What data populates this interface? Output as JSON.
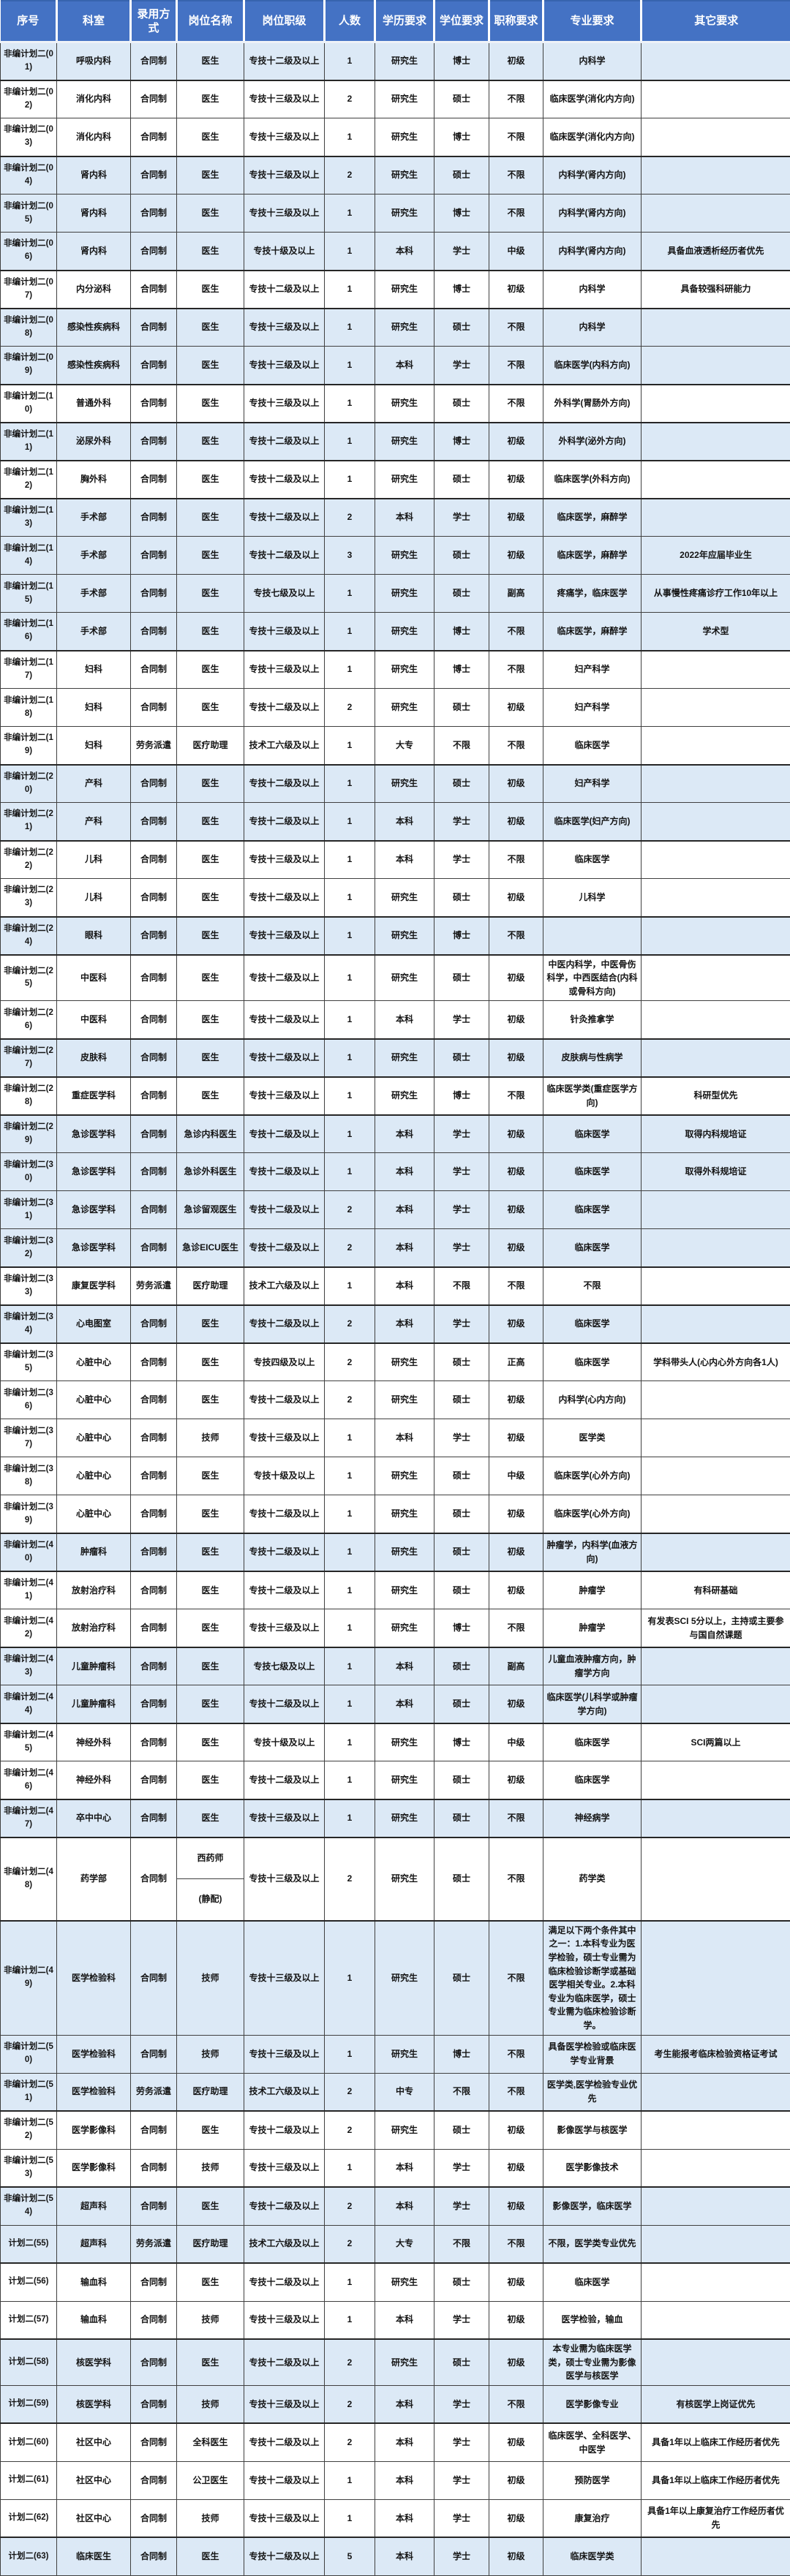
{
  "colors": {
    "header_bg": "#4472C4",
    "header_text": "#FFFFFF",
    "row_shade_blue": "#DCE9F6",
    "row_white": "#FFFFFF",
    "grid_border": "#404040"
  },
  "table": {
    "columns": [
      {
        "key": "serial",
        "label": "序号"
      },
      {
        "key": "dept",
        "label": "科室"
      },
      {
        "key": "hire",
        "label": "录用方式"
      },
      {
        "key": "post",
        "label": "岗位名称"
      },
      {
        "key": "rank",
        "label": "岗位职级"
      },
      {
        "key": "count",
        "label": "人数"
      },
      {
        "key": "edu",
        "label": "学历要求"
      },
      {
        "key": "degree",
        "label": "学位要求"
      },
      {
        "key": "title",
        "label": "职称要求"
      },
      {
        "key": "major",
        "label": "专业要求"
      },
      {
        "key": "other",
        "label": "其它要求"
      }
    ],
    "rows": [
      {
        "serial": "非编计划二(01)",
        "dept": "呼吸内科",
        "hire": "合同制",
        "post": "医生",
        "rank": "专技十二级及以上",
        "count": "1",
        "edu": "研究生",
        "degree": "博士",
        "title": "初级",
        "major": "内科学",
        "other": ""
      },
      {
        "serial": "非编计划二(02)",
        "dept": "消化内科",
        "hire": "合同制",
        "post": "医生",
        "rank": "专技十三级及以上",
        "count": "2",
        "edu": "研究生",
        "degree": "硕士",
        "title": "不限",
        "major": "临床医学(消化内方向)",
        "other": ""
      },
      {
        "serial": "非编计划二(03)",
        "dept": "消化内科",
        "hire": "合同制",
        "post": "医生",
        "rank": "专技十三级及以上",
        "count": "1",
        "edu": "研究生",
        "degree": "博士",
        "title": "不限",
        "major": "临床医学(消化内方向)",
        "other": ""
      },
      {
        "serial": "非编计划二(04)",
        "dept": "肾内科",
        "hire": "合同制",
        "post": "医生",
        "rank": "专技十三级及以上",
        "count": "2",
        "edu": "研究生",
        "degree": "硕士",
        "title": "不限",
        "major": "内科学(肾内方向)",
        "other": ""
      },
      {
        "serial": "非编计划二(05)",
        "dept": "肾内科",
        "hire": "合同制",
        "post": "医生",
        "rank": "专技十三级及以上",
        "count": "1",
        "edu": "研究生",
        "degree": "博士",
        "title": "不限",
        "major": "内科学(肾内方向)",
        "other": ""
      },
      {
        "serial": "非编计划二(06)",
        "dept": "肾内科",
        "hire": "合同制",
        "post": "医生",
        "rank": "专技十级及以上",
        "count": "1",
        "edu": "本科",
        "degree": "学士",
        "title": "中级",
        "major": "内科学(肾内方向)",
        "other": "具备血液透析经历者优先"
      },
      {
        "serial": "非编计划二(07)",
        "dept": "内分泌科",
        "hire": "合同制",
        "post": "医生",
        "rank": "专技十二级及以上",
        "count": "1",
        "edu": "研究生",
        "degree": "博士",
        "title": "初级",
        "major": "内科学",
        "other": "具备较强科研能力"
      },
      {
        "serial": "非编计划二(08)",
        "dept": "感染性疾病科",
        "hire": "合同制",
        "post": "医生",
        "rank": "专技十三级及以上",
        "count": "1",
        "edu": "研究生",
        "degree": "硕士",
        "title": "不限",
        "major": "内科学",
        "other": ""
      },
      {
        "serial": "非编计划二(09)",
        "dept": "感染性疾病科",
        "hire": "合同制",
        "post": "医生",
        "rank": "专技十三级及以上",
        "count": "1",
        "edu": "本科",
        "degree": "学士",
        "title": "不限",
        "major": "临床医学(内科方向)",
        "other": ""
      },
      {
        "serial": "非编计划二(10)",
        "dept": "普通外科",
        "hire": "合同制",
        "post": "医生",
        "rank": "专技十三级及以上",
        "count": "1",
        "edu": "研究生",
        "degree": "硕士",
        "title": "不限",
        "major": "外科学(胃肠外方向)",
        "other": ""
      },
      {
        "serial": "非编计划二(11)",
        "dept": "泌尿外科",
        "hire": "合同制",
        "post": "医生",
        "rank": "专技十二级及以上",
        "count": "1",
        "edu": "研究生",
        "degree": "博士",
        "title": "初级",
        "major": "外科学(泌外方向)",
        "other": ""
      },
      {
        "serial": "非编计划二(12)",
        "dept": "胸外科",
        "hire": "合同制",
        "post": "医生",
        "rank": "专技十二级及以上",
        "count": "1",
        "edu": "研究生",
        "degree": "硕士",
        "title": "初级",
        "major": "临床医学(外科方向)",
        "other": ""
      },
      {
        "serial": "非编计划二(13)",
        "dept": "手术部",
        "hire": "合同制",
        "post": "医生",
        "rank": "专技十二级及以上",
        "count": "2",
        "edu": "本科",
        "degree": "学士",
        "title": "初级",
        "major": "临床医学，麻醉学",
        "other": ""
      },
      {
        "serial": "非编计划二(14)",
        "dept": "手术部",
        "hire": "合同制",
        "post": "医生",
        "rank": "专技十二级及以上",
        "count": "3",
        "edu": "研究生",
        "degree": "硕士",
        "title": "初级",
        "major": "临床医学，麻醉学",
        "other": "2022年应届毕业生"
      },
      {
        "serial": "非编计划二(15)",
        "dept": "手术部",
        "hire": "合同制",
        "post": "医生",
        "rank": "专技七级及以上",
        "count": "1",
        "edu": "研究生",
        "degree": "硕士",
        "title": "副高",
        "major": "疼痛学，临床医学",
        "other": "从事慢性疼痛诊疗工作10年以上"
      },
      {
        "serial": "非编计划二(16)",
        "dept": "手术部",
        "hire": "合同制",
        "post": "医生",
        "rank": "专技十三级及以上",
        "count": "1",
        "edu": "研究生",
        "degree": "博士",
        "title": "不限",
        "major": "临床医学，麻醉学",
        "other": "学术型"
      },
      {
        "serial": "非编计划二(17)",
        "dept": "妇科",
        "hire": "合同制",
        "post": "医生",
        "rank": "专技十三级及以上",
        "count": "1",
        "edu": "研究生",
        "degree": "博士",
        "title": "不限",
        "major": "妇产科学",
        "other": ""
      },
      {
        "serial": "非编计划二(18)",
        "dept": "妇科",
        "hire": "合同制",
        "post": "医生",
        "rank": "专技十二级及以上",
        "count": "2",
        "edu": "研究生",
        "degree": "硕士",
        "title": "初级",
        "major": "妇产科学",
        "other": ""
      },
      {
        "serial": "非编计划二(19)",
        "dept": "妇科",
        "hire": "劳务派遣",
        "post": "医疗助理",
        "rank": "技术工六级及以上",
        "count": "1",
        "edu": "大专",
        "degree": "不限",
        "title": "不限",
        "major": "临床医学",
        "other": ""
      },
      {
        "serial": "非编计划二(20)",
        "dept": "产科",
        "hire": "合同制",
        "post": "医生",
        "rank": "专技十二级及以上",
        "count": "1",
        "edu": "研究生",
        "degree": "硕士",
        "title": "初级",
        "major": "妇产科学",
        "other": ""
      },
      {
        "serial": "非编计划二(21)",
        "dept": "产科",
        "hire": "合同制",
        "post": "医生",
        "rank": "专技十二级及以上",
        "count": "1",
        "edu": "本科",
        "degree": "学士",
        "title": "初级",
        "major": "临床医学(妇产方向)",
        "other": ""
      },
      {
        "serial": "非编计划二(22)",
        "dept": "儿科",
        "hire": "合同制",
        "post": "医生",
        "rank": "专技十三级及以上",
        "count": "1",
        "edu": "本科",
        "degree": "学士",
        "title": "不限",
        "major": "临床医学",
        "other": ""
      },
      {
        "serial": "非编计划二(23)",
        "dept": "儿科",
        "hire": "合同制",
        "post": "医生",
        "rank": "专技十二级及以上",
        "count": "1",
        "edu": "研究生",
        "degree": "硕士",
        "title": "初级",
        "major": "儿科学",
        "other": ""
      },
      {
        "serial": "非编计划二(24)",
        "dept": "眼科",
        "hire": "合同制",
        "post": "医生",
        "rank": "专技十三级及以上",
        "count": "1",
        "edu": "研究生",
        "degree": "博士",
        "title": "不限",
        "major": "",
        "other": ""
      },
      {
        "serial": "非编计划二(25)",
        "dept": "中医科",
        "hire": "合同制",
        "post": "医生",
        "rank": "专技十二级及以上",
        "count": "1",
        "edu": "研究生",
        "degree": "硕士",
        "title": "初级",
        "major": "中医内科学，中医骨伤科学，中西医结合(内科或骨科方向)",
        "other": ""
      },
      {
        "serial": "非编计划二(26)",
        "dept": "中医科",
        "hire": "合同制",
        "post": "医生",
        "rank": "专技十二级及以上",
        "count": "1",
        "edu": "本科",
        "degree": "学士",
        "title": "初级",
        "major": "针灸推拿学",
        "other": ""
      },
      {
        "serial": "非编计划二(27)",
        "dept": "皮肤科",
        "hire": "合同制",
        "post": "医生",
        "rank": "专技十二级及以上",
        "count": "1",
        "edu": "研究生",
        "degree": "硕士",
        "title": "初级",
        "major": "皮肤病与性病学",
        "other": ""
      },
      {
        "serial": "非编计划二(28)",
        "dept": "重症医学科",
        "hire": "合同制",
        "post": "医生",
        "rank": "专技十三级及以上",
        "count": "1",
        "edu": "研究生",
        "degree": "博士",
        "title": "不限",
        "major": "临床医学类(重症医学方向)",
        "other": "科研型优先"
      },
      {
        "serial": "非编计划二(29)",
        "dept": "急诊医学科",
        "hire": "合同制",
        "post": "急诊内科医生",
        "rank": "专技十二级及以上",
        "count": "1",
        "edu": "本科",
        "degree": "学士",
        "title": "初级",
        "major": "临床医学",
        "other": "取得内科规培证"
      },
      {
        "serial": "非编计划二(30)",
        "dept": "急诊医学科",
        "hire": "合同制",
        "post": "急诊外科医生",
        "rank": "专技十二级及以上",
        "count": "1",
        "edu": "本科",
        "degree": "学士",
        "title": "初级",
        "major": "临床医学",
        "other": "取得外科规培证"
      },
      {
        "serial": "非编计划二(31)",
        "dept": "急诊医学科",
        "hire": "合同制",
        "post": "急诊留观医生",
        "rank": "专技十二级及以上",
        "count": "2",
        "edu": "本科",
        "degree": "学士",
        "title": "初级",
        "major": "临床医学",
        "other": ""
      },
      {
        "serial": "非编计划二(32)",
        "dept": "急诊医学科",
        "hire": "合同制",
        "post": "急诊EICU医生",
        "rank": "专技十二级及以上",
        "count": "2",
        "edu": "本科",
        "degree": "学士",
        "title": "初级",
        "major": "临床医学",
        "other": ""
      },
      {
        "serial": "非编计划二(33)",
        "dept": "康复医学科",
        "hire": "劳务派遣",
        "post": "医疗助理",
        "rank": "技术工六级及以上",
        "count": "1",
        "edu": "本科",
        "degree": "不限",
        "title": "不限",
        "major": "不限",
        "other": ""
      },
      {
        "serial": "非编计划二(34)",
        "dept": "心电图室",
        "hire": "合同制",
        "post": "医生",
        "rank": "专技十二级及以上",
        "count": "2",
        "edu": "本科",
        "degree": "学士",
        "title": "初级",
        "major": "临床医学",
        "other": ""
      },
      {
        "serial": "非编计划二(35)",
        "dept": "心脏中心",
        "hire": "合同制",
        "post": "医生",
        "rank": "专技四级及以上",
        "count": "2",
        "edu": "研究生",
        "degree": "硕士",
        "title": "正高",
        "major": "临床医学",
        "other": "学科带头人(心内心外方向各1人)"
      },
      {
        "serial": "非编计划二(36)",
        "dept": "心脏中心",
        "hire": "合同制",
        "post": "医生",
        "rank": "专技十二级及以上",
        "count": "2",
        "edu": "研究生",
        "degree": "硕士",
        "title": "初级",
        "major": "内科学(心内方向)",
        "other": ""
      },
      {
        "serial": "非编计划二(37)",
        "dept": "心脏中心",
        "hire": "合同制",
        "post": "技师",
        "rank": "专技十三级及以上",
        "count": "1",
        "edu": "本科",
        "degree": "学士",
        "title": "初级",
        "major": "医学类",
        "other": ""
      },
      {
        "serial": "非编计划二(38)",
        "dept": "心脏中心",
        "hire": "合同制",
        "post": "医生",
        "rank": "专技十级及以上",
        "count": "1",
        "edu": "研究生",
        "degree": "硕士",
        "title": "中级",
        "major": "临床医学(心外方向)",
        "other": ""
      },
      {
        "serial": "非编计划二(39)",
        "dept": "心脏中心",
        "hire": "合同制",
        "post": "医生",
        "rank": "专技十二级及以上",
        "count": "1",
        "edu": "研究生",
        "degree": "硕士",
        "title": "初级",
        "major": "临床医学(心外方向)",
        "other": ""
      },
      {
        "serial": "非编计划二(40)",
        "dept": "肿瘤科",
        "hire": "合同制",
        "post": "医生",
        "rank": "专技十二级及以上",
        "count": "1",
        "edu": "研究生",
        "degree": "硕士",
        "title": "初级",
        "major": "肿瘤学，内科学(血液方向)",
        "other": ""
      },
      {
        "serial": "非编计划二(41)",
        "dept": "放射治疗科",
        "hire": "合同制",
        "post": "医生",
        "rank": "专技十二级及以上",
        "count": "1",
        "edu": "研究生",
        "degree": "硕士",
        "title": "初级",
        "major": "肿瘤学",
        "other": "有科研基础"
      },
      {
        "serial": "非编计划二(42)",
        "dept": "放射治疗科",
        "hire": "合同制",
        "post": "医生",
        "rank": "专技十三级及以上",
        "count": "1",
        "edu": "研究生",
        "degree": "博士",
        "title": "不限",
        "major": "肿瘤学",
        "other": "有发表SCI 5分以上，主持或主要参与国自然课题"
      },
      {
        "serial": "非编计划二(43)",
        "dept": "儿童肿瘤科",
        "hire": "合同制",
        "post": "医生",
        "rank": "专技七级及以上",
        "count": "1",
        "edu": "本科",
        "degree": "硕士",
        "title": "副高",
        "major": "儿童血液肿瘤方向，肿瘤学方向",
        "other": ""
      },
      {
        "serial": "非编计划二(44)",
        "dept": "儿童肿瘤科",
        "hire": "合同制",
        "post": "医生",
        "rank": "专技十二级及以上",
        "count": "1",
        "edu": "本科",
        "degree": "硕士",
        "title": "初级",
        "major": "临床医学(儿科学或肿瘤学方向)",
        "other": ""
      },
      {
        "serial": "非编计划二(45)",
        "dept": "神经外科",
        "hire": "合同制",
        "post": "医生",
        "rank": "专技十级及以上",
        "count": "1",
        "edu": "研究生",
        "degree": "博士",
        "title": "中级",
        "major": "临床医学",
        "other": "SCI两篇以上"
      },
      {
        "serial": "非编计划二(46)",
        "dept": "神经外科",
        "hire": "合同制",
        "post": "医生",
        "rank": "专技十二级及以上",
        "count": "1",
        "edu": "研究生",
        "degree": "硕士",
        "title": "初级",
        "major": "临床医学",
        "other": ""
      },
      {
        "serial": "非编计划二(47)",
        "dept": "卒中中心",
        "hire": "合同制",
        "post": "医生",
        "rank": "专技十三级及以上",
        "count": "1",
        "edu": "研究生",
        "degree": "硕士",
        "title": "不限",
        "major": "神经病学",
        "other": ""
      },
      {
        "serial": "非编计划二(48)",
        "dept": "药学部",
        "hire": "合同制",
        "post": "西药师",
        "post_lines": [
          "西药师",
          "(静配)"
        ],
        "rank": "专技十三级及以上",
        "count": "2",
        "edu": "研究生",
        "degree": "硕士",
        "title": "不限",
        "major": "药学类",
        "other": ""
      },
      {
        "serial": "非编计划二(49)",
        "dept": "医学检验科",
        "hire": "合同制",
        "post": "技师",
        "rank": "专技十三级及以上",
        "count": "1",
        "edu": "研究生",
        "degree": "硕士",
        "title": "不限",
        "major": "满足以下两个条件其中之一：1.本科专业为医学检验，硕士专业需为临床检验诊断学或基础医学相关专业。2.本科专业为临床医学，硕士专业需为临床检验诊断学。",
        "other": ""
      },
      {
        "serial": "非编计划二(50)",
        "dept": "医学检验科",
        "hire": "合同制",
        "post": "技师",
        "rank": "专技十三级及以上",
        "count": "1",
        "edu": "研究生",
        "degree": "博士",
        "title": "不限",
        "major": "具备医学检验或临床医学专业背景",
        "other": "考生能报考临床检验资格证考试"
      },
      {
        "serial": "非编计划二(51)",
        "dept": "医学检验科",
        "hire": "劳务派遣",
        "post": "医疗助理",
        "rank": "技术工六级及以上",
        "count": "2",
        "edu": "中专",
        "degree": "不限",
        "title": "不限",
        "major": "医学类,医学检验专业优先",
        "other": ""
      },
      {
        "serial": "非编计划二(52)",
        "dept": "医学影像科",
        "hire": "合同制",
        "post": "医生",
        "rank": "专技十二级及以上",
        "count": "2",
        "edu": "研究生",
        "degree": "硕士",
        "title": "初级",
        "major": "影像医学与核医学",
        "other": ""
      },
      {
        "serial": "非编计划二(53)",
        "dept": "医学影像科",
        "hire": "合同制",
        "post": "技师",
        "rank": "专技十三级及以上",
        "count": "1",
        "edu": "本科",
        "degree": "学士",
        "title": "初级",
        "major": "医学影像技术",
        "other": ""
      },
      {
        "serial": "非编计划二(54)",
        "dept": "超声科",
        "hire": "合同制",
        "post": "医生",
        "rank": "专技十二级及以上",
        "count": "2",
        "edu": "本科",
        "degree": "学士",
        "title": "初级",
        "major": "影像医学，临床医学",
        "other": ""
      },
      {
        "serial": "计划二(55)",
        "dept": "超声科",
        "hire": "劳务派遣",
        "post": "医疗助理",
        "rank": "技术工六级及以上",
        "count": "2",
        "edu": "大专",
        "degree": "不限",
        "title": "不限",
        "major": "不限，医学类专业优先",
        "other": ""
      },
      {
        "serial": "计划二(56)",
        "dept": "输血科",
        "hire": "合同制",
        "post": "医生",
        "rank": "专技十二级及以上",
        "count": "1",
        "edu": "研究生",
        "degree": "硕士",
        "title": "初级",
        "major": "临床医学",
        "other": ""
      },
      {
        "serial": "计划二(57)",
        "dept": "输血科",
        "hire": "合同制",
        "post": "技师",
        "rank": "专技十三级及以上",
        "count": "1",
        "edu": "本科",
        "degree": "学士",
        "title": "初级",
        "major": "医学检验，输血",
        "other": ""
      },
      {
        "serial": "计划二(58)",
        "dept": "核医学科",
        "hire": "合同制",
        "post": "医生",
        "rank": "专技十二级及以上",
        "count": "2",
        "edu": "研究生",
        "degree": "硕士",
        "title": "初级",
        "major": "本专业需为临床医学类，硕士专业需为影像医学与核医学",
        "other": ""
      },
      {
        "serial": "计划二(59)",
        "dept": "核医学科",
        "hire": "合同制",
        "post": "技师",
        "rank": "专技十三级及以上",
        "count": "2",
        "edu": "本科",
        "degree": "学士",
        "title": "不限",
        "major": "医学影像专业",
        "other": "有核医学上岗证优先"
      },
      {
        "serial": "计划二(60)",
        "dept": "社区中心",
        "hire": "合同制",
        "post": "全科医生",
        "rank": "专技十二级及以上",
        "count": "2",
        "edu": "本科",
        "degree": "学士",
        "title": "初级",
        "major": "临床医学、全科医学、中医学",
        "other": "具备1年以上临床工作经历者优先"
      },
      {
        "serial": "计划二(61)",
        "dept": "社区中心",
        "hire": "合同制",
        "post": "公卫医生",
        "rank": "专技十二级及以上",
        "count": "1",
        "edu": "本科",
        "degree": "学士",
        "title": "初级",
        "major": "预防医学",
        "other": "具备1年以上临床工作经历者优先"
      },
      {
        "serial": "计划二(62)",
        "dept": "社区中心",
        "hire": "合同制",
        "post": "技师",
        "rank": "专技十三级及以上",
        "count": "1",
        "edu": "本科",
        "degree": "学士",
        "title": "初级",
        "major": "康复治疗",
        "other": "具备1年以上康复治疗工作经历者优先"
      },
      {
        "serial": "计划二(63)",
        "dept": "临床医生",
        "hire": "合同制",
        "post": "医生",
        "rank": "专技十二级及以上",
        "count": "5",
        "edu": "本科",
        "degree": "学士",
        "title": "初级",
        "major": "临床医学类",
        "other": ""
      }
    ]
  }
}
